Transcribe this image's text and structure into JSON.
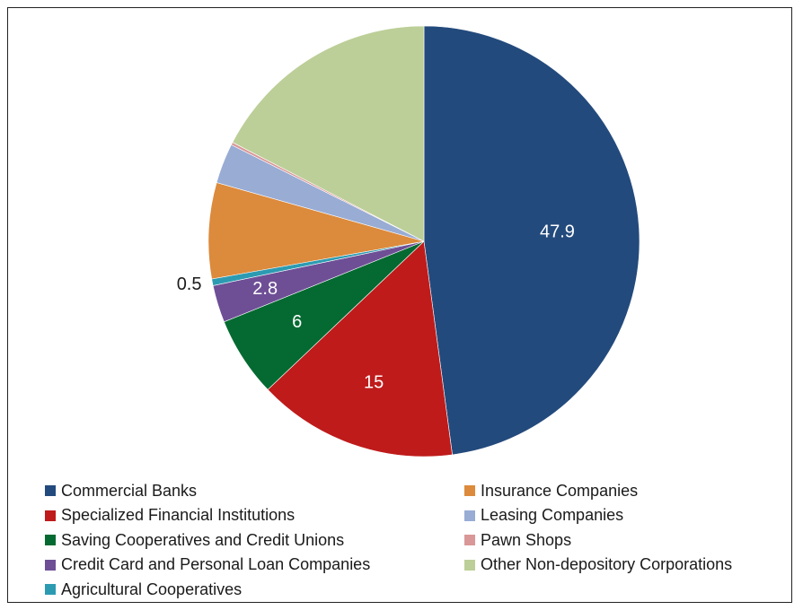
{
  "chart_data": {
    "type": "pie",
    "start_angle_deg": 0,
    "direction": "clockwise",
    "slices": [
      {
        "name": "Commercial Banks",
        "value": 47.9,
        "color": "#234a7c",
        "label": "47.9",
        "label_color": "#ffffff"
      },
      {
        "name": "Specialized Financial Institutions",
        "value": 15,
        "color": "#bf1b1b",
        "label": "15",
        "label_color": "#ffffff"
      },
      {
        "name": "Saving Cooperatives and Credit Unions",
        "value": 6,
        "color": "#046a31",
        "label": "6",
        "label_color": "#ffffff"
      },
      {
        "name": "Credit Card and Personal Loan Companies",
        "value": 2.8,
        "color": "#6e4f96",
        "label": "2.8",
        "label_color": "#ffffff"
      },
      {
        "name": "Agricultural Cooperatives",
        "value": 0.5,
        "color": "#2c9bb2",
        "label": "0.5",
        "label_color": "#1a1a1a"
      },
      {
        "name": "Insurance Companies",
        "value": 7.2,
        "color": "#dc8a3c",
        "label": "",
        "label_color": "#ffffff"
      },
      {
        "name": "Leasing Companies",
        "value": 3.0,
        "color": "#98acd4",
        "label": "",
        "label_color": "#ffffff"
      },
      {
        "name": "Pawn Shops",
        "value": 0.2,
        "color": "#d99797",
        "label": "",
        "label_color": "#ffffff"
      },
      {
        "name": "Other Non-depository Corporations",
        "value": 17.4,
        "color": "#bccf98",
        "label": "",
        "label_color": "#ffffff"
      }
    ],
    "legend": {
      "position": "bottom",
      "columns": [
        [
          "Commercial Banks",
          "Specialized Financial Institutions",
          "Saving Cooperatives and Credit Unions",
          "Credit Card and Personal Loan Companies",
          "Agricultural Cooperatives"
        ],
        [
          "Insurance Companies",
          "Leasing Companies",
          "Pawn Shops",
          "Other Non-depository Corporations"
        ]
      ]
    }
  }
}
